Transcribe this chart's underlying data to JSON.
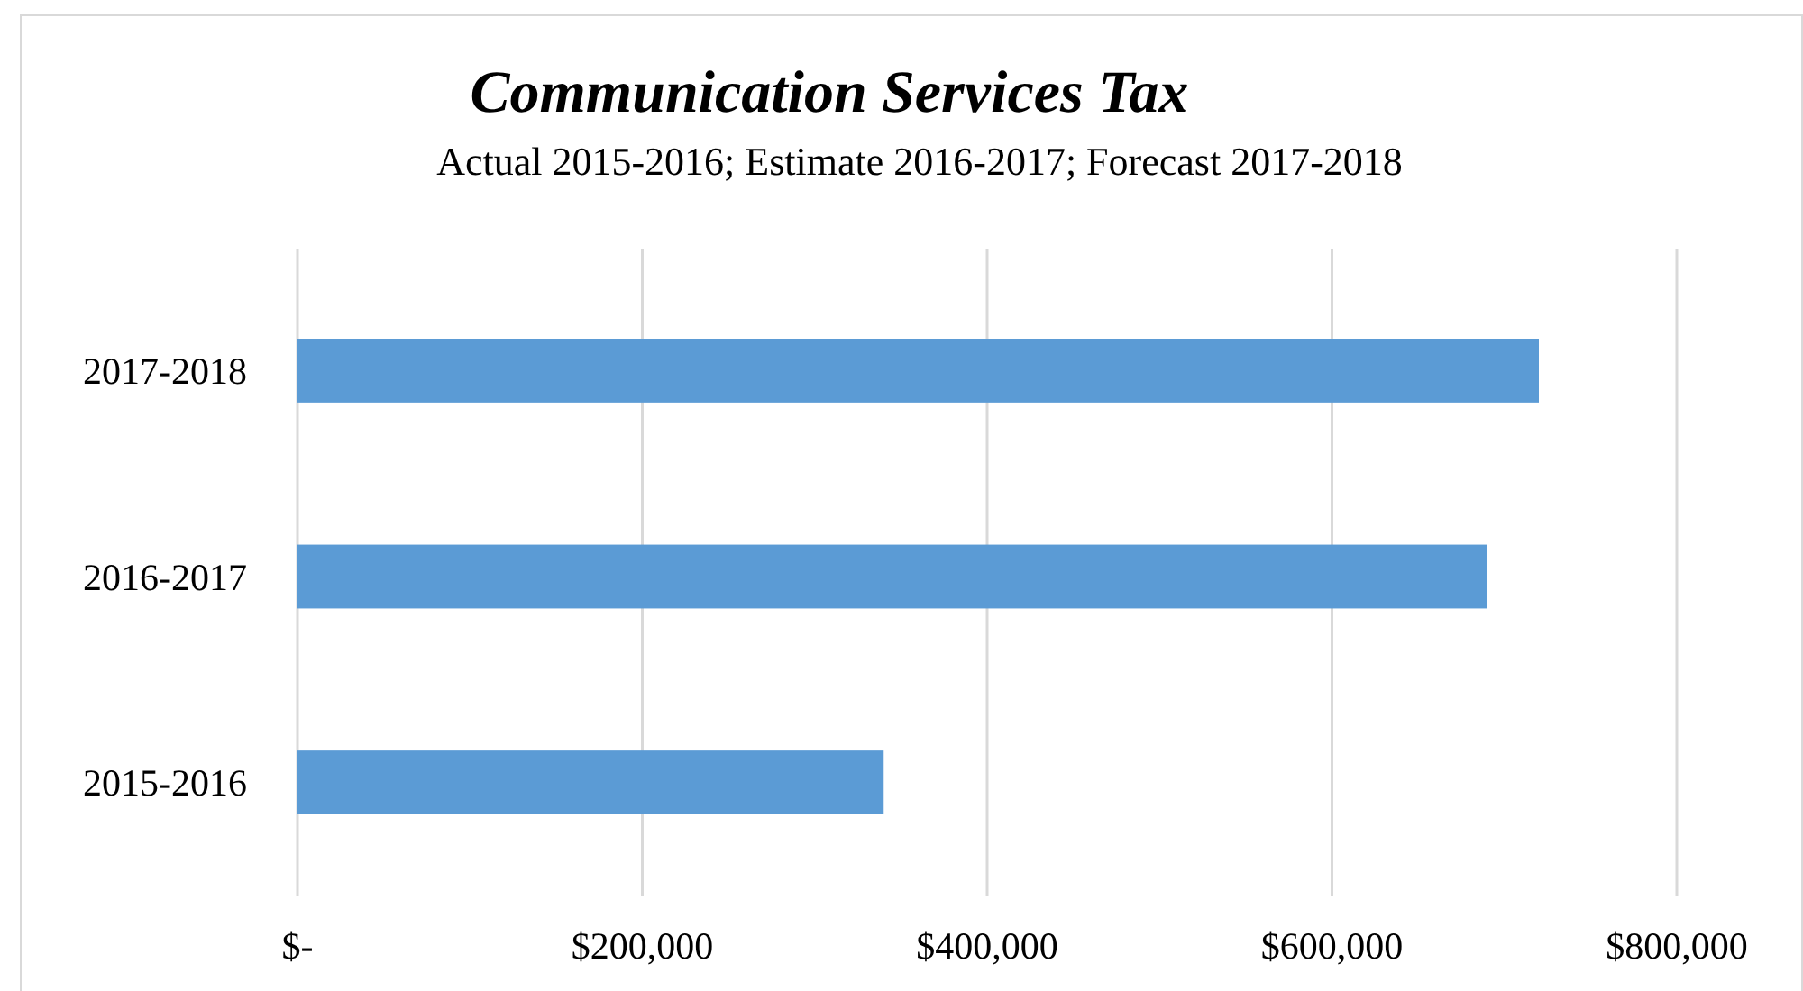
{
  "chart_data": {
    "type": "bar",
    "orientation": "horizontal",
    "title": "Communication Services Tax",
    "subtitle": "Actual 2015-2016; Estimate 2016-2017; Forecast 2017-2018",
    "categories": [
      "2017-2018",
      "2016-2017",
      "2015-2016"
    ],
    "values": [
      720000,
      690000,
      340000
    ],
    "color": "#5b9bd5",
    "xlim": [
      0,
      800000
    ],
    "xticks": [
      {
        "value": 0,
        "label": "$-"
      },
      {
        "value": 200000,
        "label": "$200,000"
      },
      {
        "value": 400000,
        "label": "$400,000"
      },
      {
        "value": 600000,
        "label": "$600,000"
      },
      {
        "value": 800000,
        "label": "$800,000"
      }
    ],
    "grid": "x"
  }
}
